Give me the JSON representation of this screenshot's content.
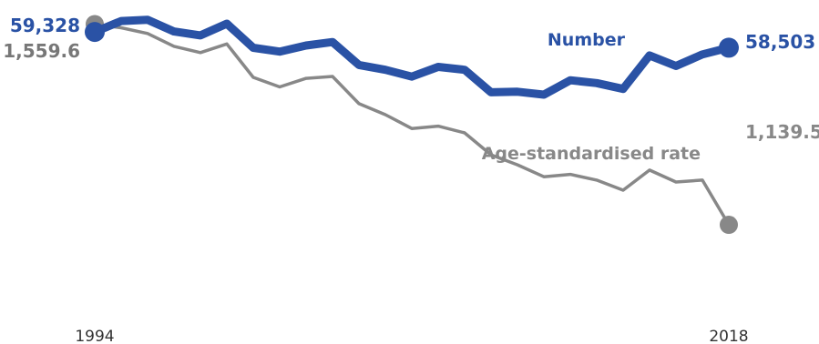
{
  "chart_data": {
    "type": "line",
    "title": "",
    "xlabel": "",
    "ylabel": "",
    "x": [
      1994,
      1995,
      1996,
      1997,
      1998,
      1999,
      2000,
      2001,
      2002,
      2003,
      2004,
      2005,
      2006,
      2007,
      2008,
      2009,
      2010,
      2011,
      2012,
      2013,
      2014,
      2015,
      2016,
      2017,
      2018
    ],
    "x_tick_labels": [
      "1994",
      "2018"
    ],
    "legend": "inline labels at line ends",
    "grid": false,
    "series": [
      {
        "name": "Number",
        "color": "#2a52a5",
        "start_label": "59,328",
        "end_label": "58,503",
        "values": [
          59328,
          59900,
          59960,
          59350,
          59150,
          59760,
          58500,
          58300,
          58620,
          58800,
          57600,
          57350,
          56990,
          57500,
          57350,
          56170,
          56200,
          56050,
          56800,
          56650,
          56350,
          58100,
          57550,
          58150,
          58503
        ],
        "ylim": [
          43000,
          61000
        ]
      },
      {
        "name": "Age-standardised rate",
        "color": "#888888",
        "start_label": "1,559.6",
        "end_label": "1,139.5",
        "values": [
          1559.6,
          1552,
          1540,
          1513,
          1500,
          1518,
          1448,
          1428,
          1446,
          1450,
          1393,
          1370,
          1341,
          1346,
          1332,
          1286,
          1265,
          1240,
          1245,
          1233,
          1212,
          1254,
          1229,
          1233,
          1139.5
        ],
        "ylim": [
          890,
          1610
        ]
      }
    ]
  }
}
